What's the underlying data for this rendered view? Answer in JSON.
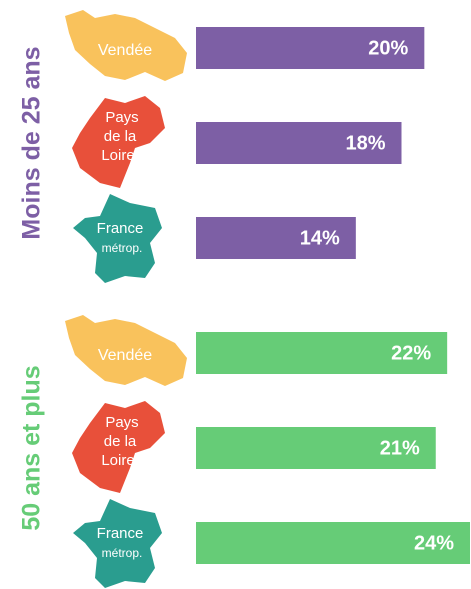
{
  "chart_data": {
    "type": "bar",
    "categories": [
      [
        "Vendée"
      ],
      [
        "Pays",
        "de la",
        "Loire"
      ],
      [
        "France",
        "métrop."
      ]
    ],
    "category_colors": [
      "#f9c25c",
      "#e8503a",
      "#2a9d8f"
    ],
    "series": [
      {
        "name": "Moins de 25 ans",
        "color": "#7d5fa5",
        "values": [
          20,
          18,
          14
        ],
        "value_labels": [
          "20%",
          "18%",
          "14%"
        ]
      },
      {
        "name": "50 ans et plus",
        "color": "#66cc77",
        "values": [
          22,
          21,
          24
        ],
        "value_labels": [
          "22%",
          "21%",
          "24%"
        ]
      }
    ]
  }
}
